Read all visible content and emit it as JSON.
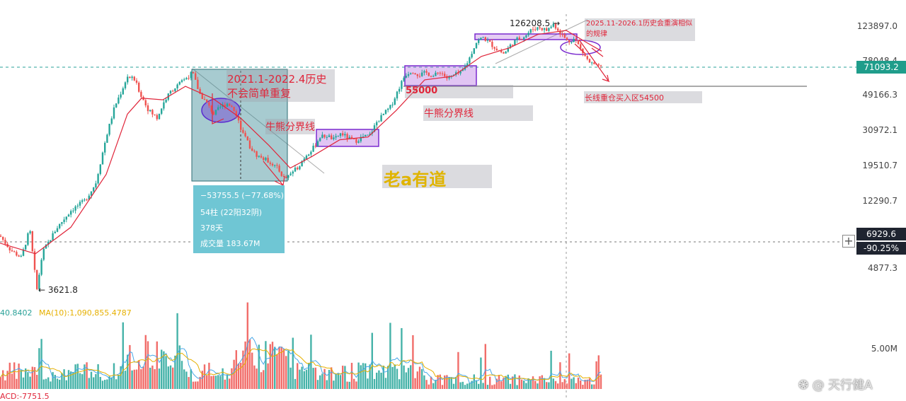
{
  "chart_data": {
    "type": "candlestick",
    "price_axis": {
      "scale": "log",
      "tick_labels": [
        "123897.0",
        "78048.4",
        "49166.3",
        "30972.1",
        "19510.7",
        "12290.7",
        "4877.3"
      ],
      "tick_values": [
        123897.0,
        78048.4,
        49166.3,
        30972.1,
        19510.7,
        12290.7,
        4877.3
      ],
      "current_price": "71093.2",
      "crosshair_price": "6929.6",
      "crosshair_change": "-90.25%"
    },
    "volume_axis": {
      "tick_labels": [
        "5.00M"
      ]
    },
    "high_label": "126208.5",
    "low_label": "3621.8",
    "annotations": {
      "history_note": "2021.1-2022.4历史不会简单重复",
      "bull_bear_line_1": "牛熊分界线",
      "bull_bear_line_2": "牛熊分界线",
      "level_55000": "55000",
      "watermark_logo": "老a有道",
      "forecast_note": "2025.11-2026.1历史会重演相似的规律",
      "buy_zone": "长线重仓买入区54500"
    },
    "measure_box": {
      "change": "−53755.5 (−77.68%)",
      "bars": "54柱 (22阳32阴)",
      "days": "378天",
      "volume": "成交量 183.67M"
    },
    "volume_legend": {
      "ma5": "40.8402",
      "ma10": "MA(10):1,090,855.4787"
    },
    "macd_label": "ACD:-7751.5",
    "price_series_approx": [
      [
        0,
        7500
      ],
      [
        15,
        6200
      ],
      [
        30,
        5600
      ],
      [
        42,
        8200
      ],
      [
        52,
        3621.8
      ],
      [
        60,
        6000
      ],
      [
        80,
        8300
      ],
      [
        100,
        10500
      ],
      [
        120,
        12000
      ],
      [
        135,
        15000
      ],
      [
        150,
        28000
      ],
      [
        162,
        42000
      ],
      [
        172,
        52000
      ],
      [
        180,
        63000
      ],
      [
        190,
        60000
      ],
      [
        200,
        48000
      ],
      [
        210,
        40000
      ],
      [
        222,
        36000
      ],
      [
        232,
        45000
      ],
      [
        242,
        52000
      ],
      [
        252,
        56000
      ],
      [
        262,
        61000
      ],
      [
        272,
        66000
      ],
      [
        282,
        50000
      ],
      [
        292,
        44000
      ],
      [
        302,
        38000
      ],
      [
        312,
        42000
      ],
      [
        322,
        44000
      ],
      [
        332,
        40000
      ],
      [
        342,
        30000
      ],
      [
        352,
        25000
      ],
      [
        362,
        22000
      ],
      [
        372,
        21000
      ],
      [
        382,
        20000
      ],
      [
        392,
        18500
      ],
      [
        402,
        16000
      ],
      [
        412,
        17500
      ],
      [
        422,
        19000
      ],
      [
        432,
        22000
      ],
      [
        442,
        24000
      ],
      [
        452,
        28000
      ],
      [
        462,
        28500
      ],
      [
        472,
        27000
      ],
      [
        482,
        29500
      ],
      [
        492,
        27500
      ],
      [
        502,
        26500
      ],
      [
        512,
        28000
      ],
      [
        522,
        28500
      ],
      [
        532,
        34000
      ],
      [
        542,
        38000
      ],
      [
        552,
        42000
      ],
      [
        562,
        52000
      ],
      [
        572,
        64000
      ],
      [
        582,
        68000
      ],
      [
        592,
        64000
      ],
      [
        602,
        66000
      ],
      [
        612,
        63000
      ],
      [
        622,
        67000
      ],
      [
        632,
        61000
      ],
      [
        642,
        64000
      ],
      [
        652,
        66000
      ],
      [
        662,
        78000
      ],
      [
        672,
        98000
      ],
      [
        682,
        106000
      ],
      [
        692,
        98000
      ],
      [
        702,
        90000
      ],
      [
        712,
        85000
      ],
      [
        722,
        96000
      ],
      [
        732,
        104000
      ],
      [
        742,
        108000
      ],
      [
        752,
        118000
      ],
      [
        762,
        121000
      ],
      [
        772,
        116000
      ],
      [
        782,
        126208.5
      ],
      [
        792,
        112000
      ],
      [
        802,
        100000
      ],
      [
        812,
        104000
      ],
      [
        822,
        88000
      ],
      [
        832,
        76000
      ],
      [
        842,
        72000
      ],
      [
        850,
        71093.2
      ]
    ],
    "ma_series_approx": [
      [
        0,
        6800
      ],
      [
        50,
        5900
      ],
      [
        100,
        8400
      ],
      [
        150,
        17000
      ],
      [
        180,
        38000
      ],
      [
        200,
        47000
      ],
      [
        230,
        46000
      ],
      [
        262,
        55000
      ],
      [
        300,
        47000
      ],
      [
        340,
        36000
      ],
      [
        380,
        25000
      ],
      [
        410,
        18500
      ],
      [
        440,
        21500
      ],
      [
        480,
        27000
      ],
      [
        520,
        28000
      ],
      [
        560,
        40000
      ],
      [
        600,
        60000
      ],
      [
        640,
        63000
      ],
      [
        680,
        82000
      ],
      [
        720,
        92000
      ],
      [
        760,
        110000
      ],
      [
        800,
        116000
      ],
      [
        830,
        98000
      ],
      [
        850,
        88000
      ]
    ]
  }
}
